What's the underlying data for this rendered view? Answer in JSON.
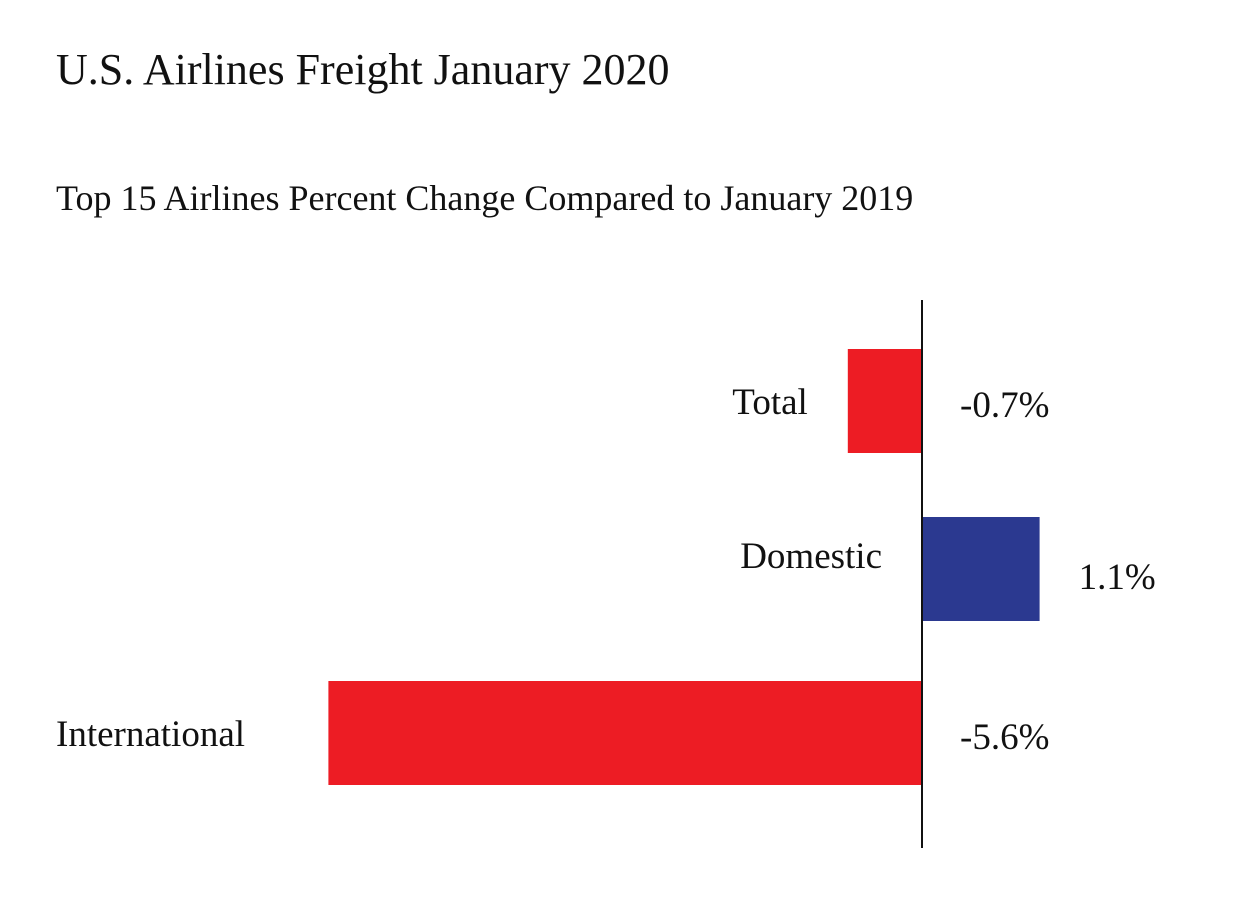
{
  "chart_data": {
    "type": "bar",
    "orientation": "horizontal",
    "title": "U.S. Airlines Freight January 2020",
    "subtitle": "Top 15 Airlines Percent Change Compared to January 2019",
    "categories": [
      "Total",
      "Domestic",
      "International"
    ],
    "values": [
      -0.7,
      1.1,
      -5.6
    ],
    "value_labels": [
      "-0.7%",
      "1.1%",
      "-5.6%"
    ],
    "unit": "%",
    "colors": {
      "negative": "#ED1C24",
      "positive": "#2B3990",
      "axis": "#111111"
    },
    "grid": false,
    "legend": "none"
  }
}
